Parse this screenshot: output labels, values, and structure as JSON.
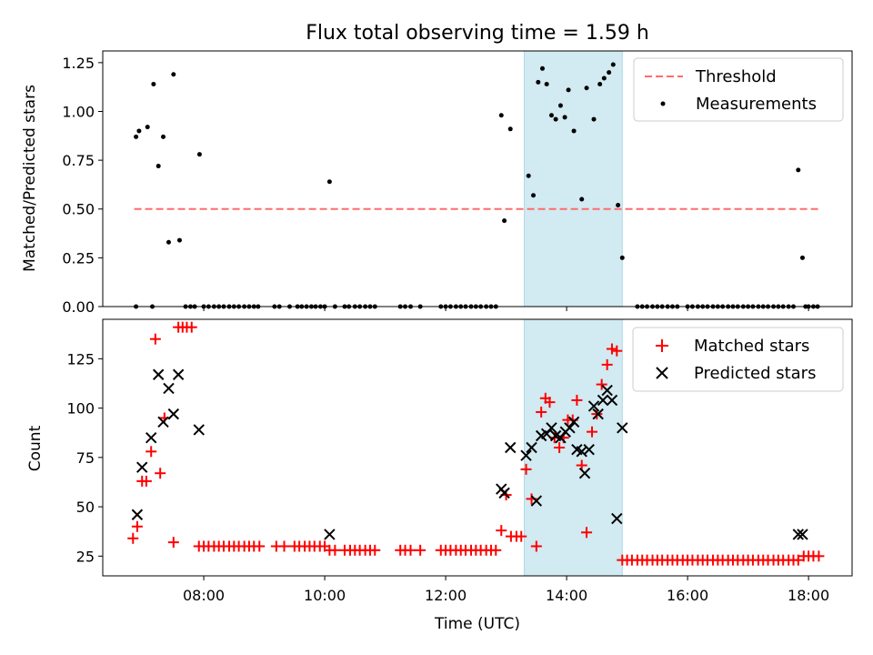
{
  "chart_data": [
    {
      "type": "scatter",
      "title": "Flux total observing time = 1.59 h",
      "xlabel": "",
      "ylabel": "Matched/Predicted stars",
      "xlim": [
        6.33,
        18.72
      ],
      "ylim": [
        0.0,
        1.31
      ],
      "yticks": [
        0.0,
        0.25,
        0.5,
        0.75,
        1.0,
        1.25
      ],
      "ytick_labels": [
        "0.00",
        "0.25",
        "0.50",
        "0.75",
        "1.00",
        "1.25"
      ],
      "xticks": [
        8,
        10,
        12,
        14,
        16,
        18
      ],
      "shaded_span": {
        "x0": 13.3,
        "x1": 14.92,
        "color": "#add8e6"
      },
      "legend_position": "top-right",
      "threshold": {
        "name": "Threshold",
        "y": 0.5,
        "x0": 6.85,
        "x1": 18.17,
        "color": "#ff6b6b"
      },
      "series": [
        {
          "name": "Measurements",
          "color": "#000000",
          "marker": "dot",
          "x": [
            6.88,
            6.93,
            7.07,
            7.17,
            7.25,
            7.33,
            7.42,
            7.5,
            7.6,
            7.93,
            10.08,
            12.92,
            12.97,
            13.07,
            13.37,
            13.45,
            13.53,
            13.6,
            13.67,
            13.75,
            13.82,
            13.9,
            13.97,
            14.03,
            14.12,
            14.25,
            14.33,
            14.45,
            14.55,
            14.62,
            14.7,
            14.77,
            14.85,
            14.92,
            17.83,
            17.9
          ],
          "y": [
            0.87,
            0.9,
            0.92,
            1.14,
            0.72,
            0.87,
            0.33,
            1.19,
            0.34,
            0.78,
            0.64,
            0.98,
            0.44,
            0.91,
            0.67,
            0.57,
            1.15,
            1.22,
            1.14,
            0.98,
            0.96,
            1.03,
            0.97,
            1.11,
            0.9,
            0.55,
            1.12,
            0.96,
            1.14,
            1.17,
            1.2,
            1.24,
            0.52,
            0.25,
            0.7,
            0.25
          ]
        },
        {
          "name": "",
          "color": "#000000",
          "marker": "dot",
          "x": [
            6.88,
            7.15,
            7.7,
            7.78,
            7.85,
            8.0,
            8.08,
            8.17,
            8.25,
            8.33,
            8.42,
            8.5,
            8.58,
            8.67,
            8.75,
            8.83,
            8.9,
            9.17,
            9.25,
            9.42,
            9.55,
            9.62,
            9.7,
            9.78,
            9.85,
            9.93,
            10.0,
            10.17,
            10.33,
            10.4,
            10.5,
            10.58,
            10.67,
            10.75,
            10.83,
            11.25,
            11.33,
            11.42,
            11.58,
            11.92,
            12.0,
            12.08,
            12.17,
            12.25,
            12.33,
            12.42,
            12.5,
            12.58,
            12.67,
            12.75,
            12.83,
            15.17,
            15.25,
            15.33,
            15.42,
            15.5,
            15.58,
            15.67,
            15.75,
            15.83,
            16.0,
            16.08,
            16.17,
            16.25,
            16.33,
            16.42,
            16.5,
            16.58,
            16.67,
            16.75,
            16.83,
            16.92,
            17.0,
            17.08,
            17.17,
            17.25,
            17.33,
            17.42,
            17.5,
            17.58,
            17.67,
            17.75,
            17.95,
            18.0,
            18.08,
            18.15
          ],
          "y": [
            0.0,
            0.0,
            0.0,
            0.0,
            0.0,
            0.0,
            0.0,
            0.0,
            0.0,
            0.0,
            0.0,
            0.0,
            0.0,
            0.0,
            0.0,
            0.0,
            0.0,
            0.0,
            0.0,
            0.0,
            0.0,
            0.0,
            0.0,
            0.0,
            0.0,
            0.0,
            0.0,
            0.0,
            0.0,
            0.0,
            0.0,
            0.0,
            0.0,
            0.0,
            0.0,
            0.0,
            0.0,
            0.0,
            0.0,
            0.0,
            0.0,
            0.0,
            0.0,
            0.0,
            0.0,
            0.0,
            0.0,
            0.0,
            0.0,
            0.0,
            0.0,
            0.0,
            0.0,
            0.0,
            0.0,
            0.0,
            0.0,
            0.0,
            0.0,
            0.0,
            0.0,
            0.0,
            0.0,
            0.0,
            0.0,
            0.0,
            0.0,
            0.0,
            0.0,
            0.0,
            0.0,
            0.0,
            0.0,
            0.0,
            0.0,
            0.0,
            0.0,
            0.0,
            0.0,
            0.0,
            0.0,
            0.0,
            0.0,
            0.0,
            0.0,
            0.0
          ]
        }
      ]
    },
    {
      "type": "scatter",
      "title": "",
      "xlabel": "Time (UTC)",
      "ylabel": "Count",
      "xlim": [
        6.33,
        18.72
      ],
      "ylim": [
        15,
        145
      ],
      "yticks": [
        25,
        50,
        75,
        100,
        125
      ],
      "ytick_labels": [
        "25",
        "50",
        "75",
        "100",
        "125"
      ],
      "xticks": [
        8,
        10,
        12,
        14,
        16,
        18
      ],
      "xtick_labels": [
        "08:00",
        "10:00",
        "12:00",
        "14:00",
        "16:00",
        "18:00"
      ],
      "shaded_span": {
        "x0": 13.3,
        "x1": 14.92,
        "color": "#add8e6"
      },
      "legend_position": "top-right",
      "series": [
        {
          "name": "Matched stars",
          "color": "#ff0000",
          "marker": "plus",
          "x": [
            6.83,
            6.9,
            6.98,
            7.05,
            7.13,
            7.2,
            7.28,
            7.35,
            7.5,
            7.58,
            7.65,
            7.72,
            7.8,
            7.92,
            8.0,
            8.08,
            8.17,
            8.25,
            8.33,
            8.42,
            8.5,
            8.58,
            8.67,
            8.75,
            8.83,
            8.92,
            9.2,
            9.33,
            9.5,
            9.58,
            9.67,
            9.75,
            9.83,
            9.92,
            10.0,
            10.08,
            10.17,
            10.33,
            10.42,
            10.5,
            10.58,
            10.67,
            10.75,
            10.83,
            11.25,
            11.33,
            11.42,
            11.58,
            11.92,
            12.0,
            12.08,
            12.17,
            12.25,
            12.33,
            12.42,
            12.5,
            12.58,
            12.67,
            12.75,
            12.83,
            12.92,
            13.0,
            13.08,
            13.17,
            13.25,
            13.33,
            13.42,
            13.5,
            13.58,
            13.65,
            13.72,
            13.8,
            13.88,
            13.95,
            14.02,
            14.1,
            14.17,
            14.25,
            14.33,
            14.42,
            14.5,
            14.58,
            14.67,
            14.75,
            14.83,
            14.92,
            15.0,
            15.08,
            15.17,
            15.25,
            15.33,
            15.42,
            15.5,
            15.58,
            15.67,
            15.75,
            15.83,
            15.92,
            16.0,
            16.08,
            16.17,
            16.25,
            16.33,
            16.42,
            16.5,
            16.58,
            16.67,
            16.75,
            16.83,
            16.92,
            17.0,
            17.08,
            17.17,
            17.25,
            17.33,
            17.42,
            17.5,
            17.58,
            17.67,
            17.75,
            17.83,
            17.92,
            18.0,
            18.08,
            18.17
          ],
          "y": [
            34,
            40,
            63,
            63,
            78,
            135,
            67,
            95,
            32,
            141,
            141,
            141,
            141,
            30,
            30,
            30,
            30,
            30,
            30,
            30,
            30,
            30,
            30,
            30,
            30,
            30,
            30,
            30,
            30,
            30,
            30,
            30,
            30,
            30,
            30,
            28,
            28,
            28,
            28,
            28,
            28,
            28,
            28,
            28,
            28,
            28,
            28,
            28,
            28,
            28,
            28,
            28,
            28,
            28,
            28,
            28,
            28,
            28,
            28,
            28,
            38,
            56,
            35,
            35,
            35,
            69,
            54,
            30,
            98,
            105,
            103,
            85,
            80,
            85,
            94,
            94,
            104,
            71,
            37,
            88,
            97,
            112,
            122,
            130,
            129,
            23,
            23,
            23,
            23,
            23,
            23,
            23,
            23,
            23,
            23,
            23,
            23,
            23,
            23,
            23,
            23,
            23,
            23,
            23,
            23,
            23,
            23,
            23,
            23,
            23,
            23,
            23,
            23,
            23,
            23,
            23,
            23,
            23,
            23,
            23,
            23,
            25,
            25,
            25,
            25
          ]
        },
        {
          "name": "Predicted stars",
          "color": "#000000",
          "marker": "x",
          "x": [
            6.9,
            6.98,
            7.13,
            7.25,
            7.33,
            7.42,
            7.5,
            7.58,
            7.92,
            10.08,
            12.92,
            12.97,
            13.07,
            13.33,
            13.42,
            13.5,
            13.58,
            13.67,
            13.75,
            13.82,
            13.9,
            13.98,
            14.05,
            14.12,
            14.17,
            14.25,
            14.3,
            14.37,
            14.45,
            14.52,
            14.6,
            14.67,
            14.75,
            14.83,
            14.92,
            17.83,
            17.9
          ],
          "y": [
            46,
            70,
            85,
            117,
            93,
            110,
            97,
            117,
            89,
            36,
            59,
            57,
            80,
            76,
            80,
            53,
            86,
            87,
            90,
            86,
            85,
            88,
            90,
            93,
            79,
            78,
            67,
            79,
            101,
            97,
            104,
            109,
            104,
            44,
            90,
            36,
            36
          ]
        }
      ]
    }
  ]
}
